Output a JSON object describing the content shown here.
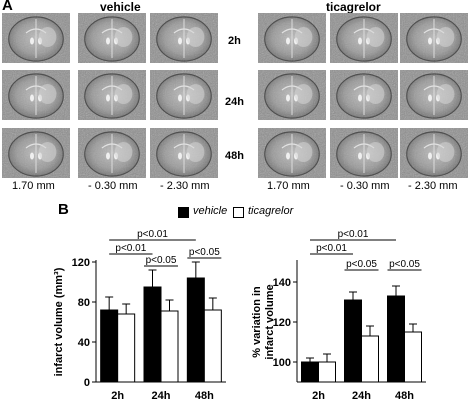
{
  "panel_a": {
    "letter": "A",
    "groups": [
      "vehicle",
      "ticagrelor"
    ],
    "timepoints": [
      "2h",
      "24h",
      "48h"
    ],
    "coronal_levels": [
      "1.70 mm",
      "- 0.30 mm",
      "- 2.30 mm"
    ]
  },
  "panel_b": {
    "letter": "B",
    "legend": [
      {
        "label": "vehicle",
        "color": "#000000"
      },
      {
        "label": "ticagrelor",
        "color": "#ffffff"
      }
    ]
  },
  "chart_data": [
    {
      "type": "bar",
      "categories": [
        "2h",
        "24h",
        "48h"
      ],
      "series": [
        {
          "name": "vehicle",
          "values": [
            72,
            95,
            104
          ],
          "errors": [
            13,
            17,
            16
          ]
        },
        {
          "name": "ticagrelor",
          "values": [
            68,
            71,
            72
          ],
          "errors": [
            10,
            11,
            12
          ]
        }
      ],
      "ylabel": "infarct volume (mm³)",
      "ylim": [
        0,
        120
      ],
      "yticks": [
        0,
        40,
        80,
        120
      ],
      "annotations": [
        {
          "text": "p<0.01",
          "from": "2h",
          "to": "48h"
        },
        {
          "text": "p<0.01",
          "from": "2h",
          "to": "24h"
        },
        {
          "text": "p<0.05",
          "from": "24h",
          "to": "24h"
        },
        {
          "text": "p<0.05",
          "from": "48h",
          "to": "48h"
        }
      ]
    },
    {
      "type": "bar",
      "categories": [
        "2h",
        "24h",
        "48h"
      ],
      "series": [
        {
          "name": "vehicle",
          "values": [
            100,
            131,
            133
          ],
          "errors": [
            2,
            4,
            5
          ]
        },
        {
          "name": "ticagrelor",
          "values": [
            100,
            113,
            115
          ],
          "errors": [
            4,
            5,
            4
          ]
        }
      ],
      "ylabel": "% variation in infarct volume",
      "ylim": [
        90,
        150
      ],
      "yticks": [
        100,
        120,
        140
      ],
      "annotations": [
        {
          "text": "p<0.01",
          "from": "2h",
          "to": "48h"
        },
        {
          "text": "p<0.01",
          "from": "2h",
          "to": "24h"
        },
        {
          "text": "p<0.05",
          "from": "24h",
          "to": "24h"
        },
        {
          "text": "p<0.05",
          "from": "48h",
          "to": "48h"
        }
      ]
    }
  ]
}
